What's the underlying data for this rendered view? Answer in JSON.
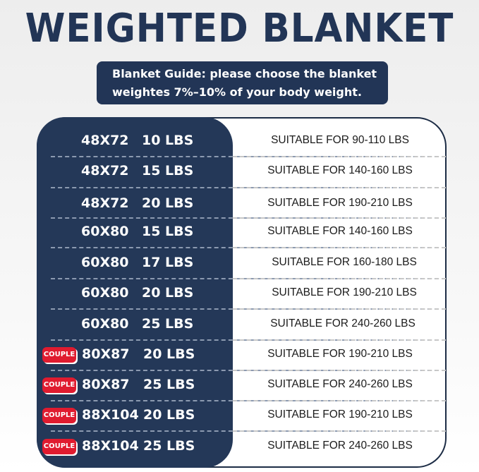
{
  "title": "WEIGHTED BLANKET",
  "guide": {
    "line1": "Blanket Guide: please choose the blanket",
    "line2": "weightes 7%–10% of your body weight."
  },
  "colors": {
    "navy": "#243858",
    "badge_red": "#e01b2f"
  },
  "rows": [
    {
      "badge": "",
      "size": "48X72",
      "weight": "10 LBS",
      "suitable": "SUITABLE FOR 90-110 LBS"
    },
    {
      "badge": "",
      "size": "48X72",
      "weight": "15 LBS",
      "suitable": "SUITABLE FOR 140-160 LBS"
    },
    {
      "badge": "",
      "size": "48X72",
      "weight": "20 LBS",
      "suitable": "SUITABLE FOR 190-210 LBS"
    },
    {
      "badge": "",
      "size": "60X80",
      "weight": "15 LBS",
      "suitable": "SUITABLE FOR 140-160 LBS"
    },
    {
      "badge": "",
      "size": "60X80",
      "weight": "17 LBS",
      "suitable": "SUITABLE FOR 160-180 LBS"
    },
    {
      "badge": "",
      "size": "60X80",
      "weight": "20 LBS",
      "suitable": "SUITABLE FOR 190-210 LBS"
    },
    {
      "badge": "",
      "size": "60X80",
      "weight": "25 LBS",
      "suitable": "SUITABLE FOR 240-260 LBS"
    },
    {
      "badge": "COUPLE",
      "size": "80X87",
      "weight": "20 LBS",
      "suitable": "SUITABLE FOR 190-210 LBS"
    },
    {
      "badge": "COUPLE",
      "size": "80X87",
      "weight": "25 LBS",
      "suitable": "SUITABLE FOR 240-260 LBS"
    },
    {
      "badge": "COUPLE",
      "size": "88X104",
      "weight": "20 LBS",
      "suitable": "SUITABLE FOR 190-210 LBS"
    },
    {
      "badge": "COUPLE",
      "size": "88X104",
      "weight": "25 LBS",
      "suitable": "SUITABLE FOR 240-260 LBS"
    }
  ]
}
